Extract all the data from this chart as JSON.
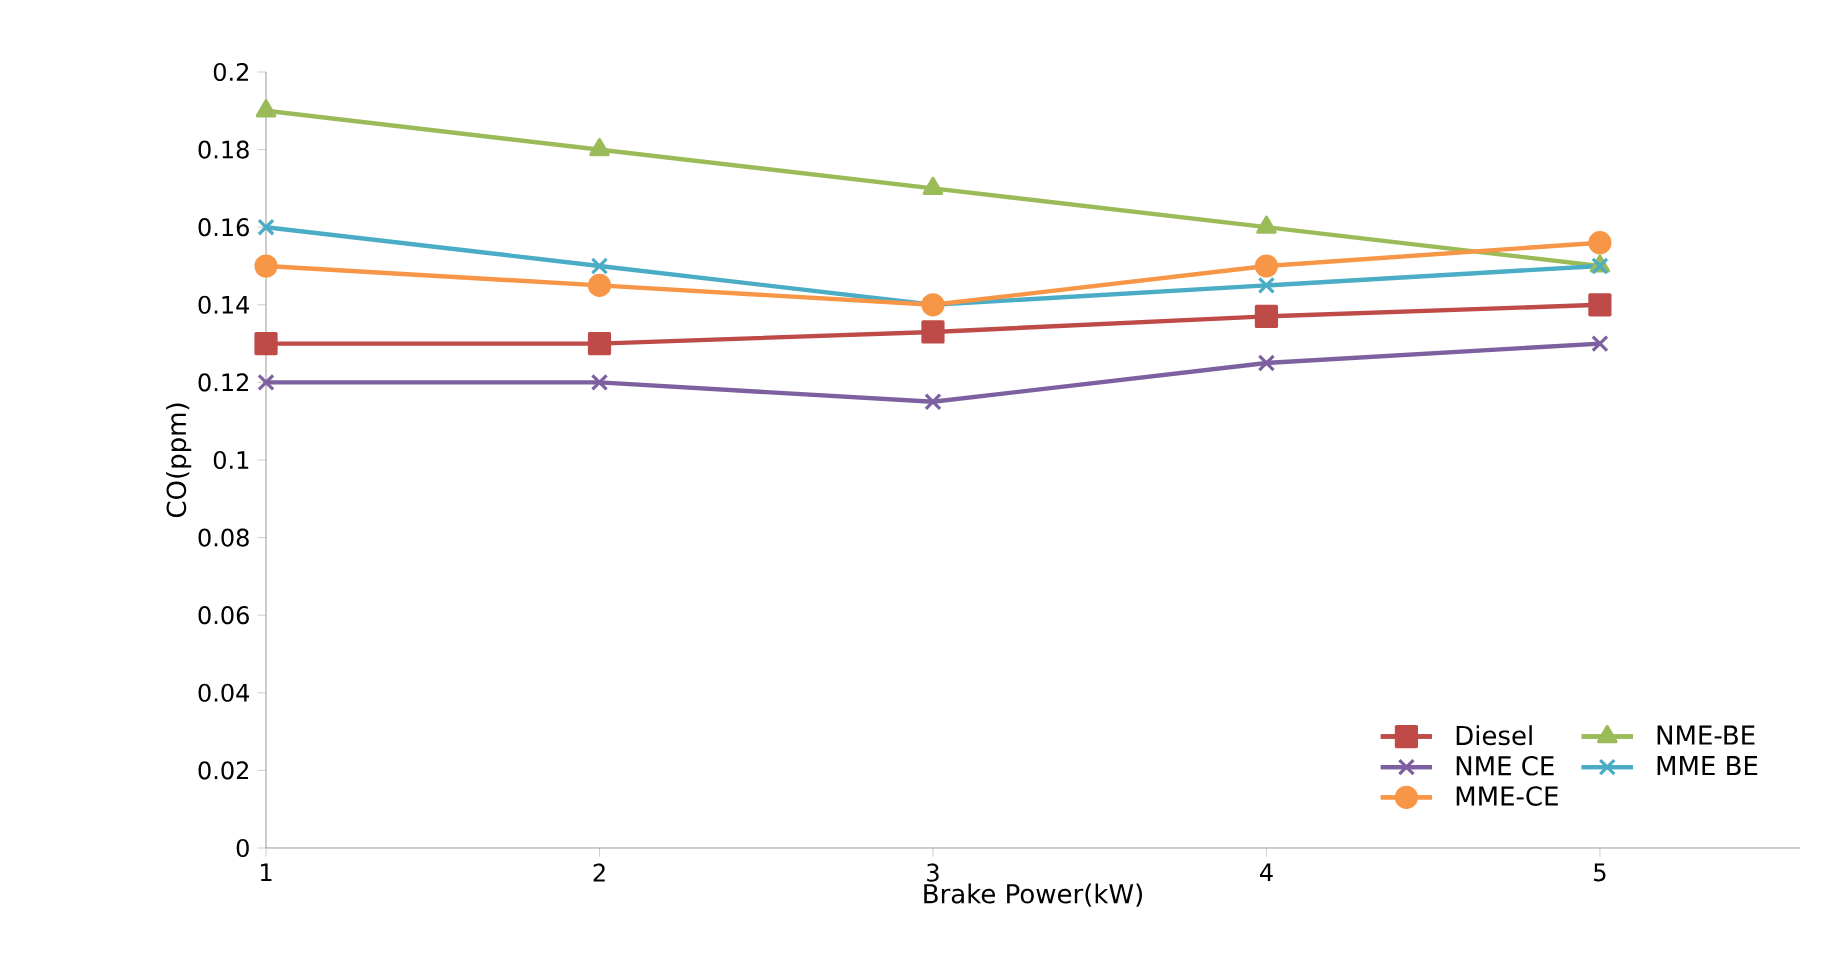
{
  "chart_data": {
    "type": "line",
    "xlabel": "Brake Power(kW)",
    "ylabel": "CO(ppm)",
    "x": [
      1,
      2,
      3,
      4,
      5
    ],
    "xlim": [
      1,
      5.6
    ],
    "xticks": [
      1,
      2,
      3,
      4,
      5
    ],
    "ylim": [
      0,
      0.2
    ],
    "yticks": [
      0,
      0.02,
      0.04,
      0.06,
      0.08,
      0.1,
      0.12,
      0.14,
      0.16,
      0.18,
      0.2
    ],
    "grid": false,
    "legend": "bottom right",
    "series": [
      {
        "name": "Diesel",
        "color": "#be4b48",
        "marker": "square",
        "values": [
          0.13,
          0.13,
          0.133,
          0.137,
          0.14
        ]
      },
      {
        "name": "NME-BE",
        "color": "#9bbb59",
        "marker": "triangle",
        "values": [
          0.19,
          0.18,
          0.17,
          0.16,
          0.15
        ]
      },
      {
        "name": "NME CE",
        "color": "#7d60a0",
        "marker": "cross",
        "values": [
          0.12,
          0.12,
          0.115,
          0.125,
          0.13
        ]
      },
      {
        "name": "MME BE",
        "color": "#4bacc6",
        "marker": "cross",
        "values": [
          0.16,
          0.15,
          0.14,
          0.145,
          0.15
        ]
      },
      {
        "name": "MME-CE",
        "color": "#f79646",
        "marker": "circle",
        "values": [
          0.15,
          0.145,
          0.14,
          0.15,
          0.156
        ]
      }
    ]
  }
}
